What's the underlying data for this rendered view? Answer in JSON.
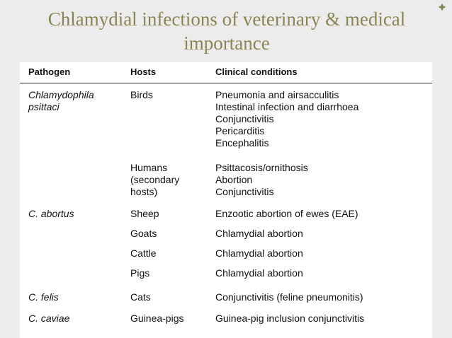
{
  "title": "Chlamydial infections of veterinary & medical importance",
  "corner_icon": "fleuron-icon",
  "table": {
    "headers": {
      "pathogen": "Pathogen",
      "hosts": "Hosts",
      "conditions": "Clinical conditions"
    },
    "rows": [
      {
        "pathogen": [
          "Chlamydophila",
          "psittaci"
        ],
        "hosts": [
          "Birds"
        ],
        "conditions": [
          "Pneumonia and airsacculitis",
          "Intestinal infection and diarrhoea",
          "Conjunctivitis",
          "Pericarditis",
          "Encephalitis"
        ]
      },
      {
        "pathogen": [],
        "hosts": [
          "Humans",
          "(secondary",
          "hosts)"
        ],
        "conditions": [
          "Psittacosis/ornithosis",
          "Abortion",
          "Conjunctivitis"
        ]
      },
      {
        "pathogen": [
          "C. abortus"
        ],
        "hosts": [
          "Sheep"
        ],
        "conditions": [
          "Enzootic abortion of ewes (EAE)"
        ]
      },
      {
        "pathogen": [],
        "hosts": [
          "Goats"
        ],
        "conditions": [
          "Chlamydial abortion"
        ]
      },
      {
        "pathogen": [],
        "hosts": [
          "Cattle"
        ],
        "conditions": [
          "Chlamydial abortion"
        ]
      },
      {
        "pathogen": [],
        "hosts": [
          "Pigs"
        ],
        "conditions": [
          "Chlamydial abortion"
        ]
      },
      {
        "pathogen": [
          "C. felis"
        ],
        "hosts": [
          "Cats"
        ],
        "conditions": [
          "Conjunctivitis (feline pneumonitis)"
        ]
      },
      {
        "pathogen": [
          "C. caviae"
        ],
        "hosts": [
          "Guinea-pigs"
        ],
        "conditions": [
          "Guinea-pig inclusion conjunctivitis"
        ]
      }
    ]
  }
}
